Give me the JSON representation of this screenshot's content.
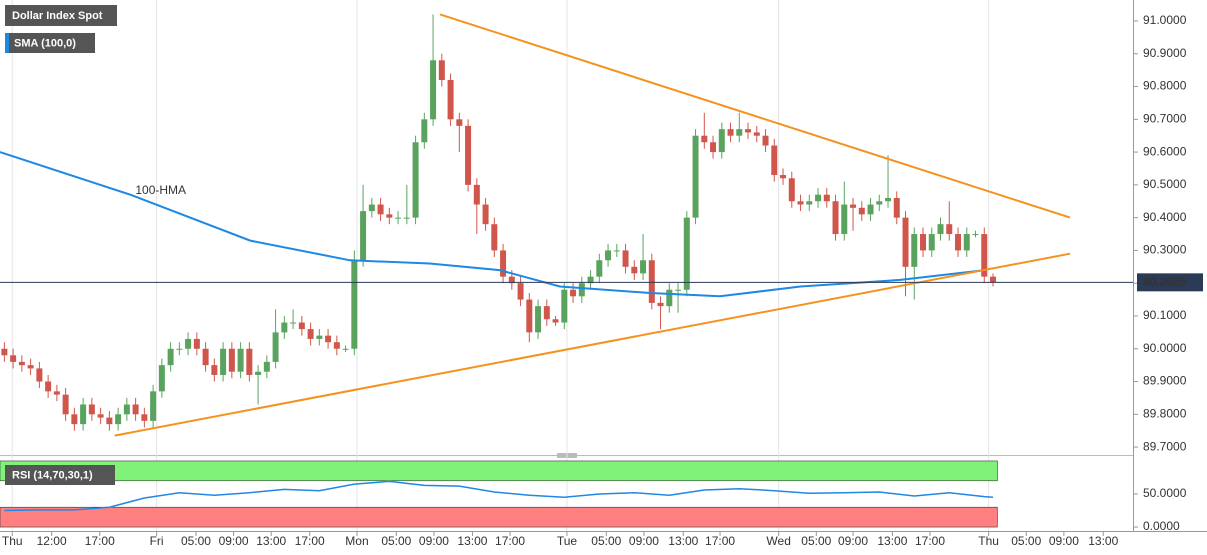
{
  "chart_data": [
    {
      "type": "candlestick",
      "title": "Dollar Index Spot",
      "indicator": "SMA (100,0)",
      "annotation": "100-HMA",
      "up_color": "#5aa35f",
      "down_color": "#d0564c",
      "open": [
        90.0,
        89.98,
        89.96,
        89.95,
        89.94,
        89.9,
        89.87,
        89.86,
        89.8,
        89.77,
        89.83,
        89.8,
        89.79,
        89.77,
        89.8,
        89.83,
        89.8,
        89.78,
        89.87,
        89.95,
        90.0,
        90.0,
        90.03,
        90.0,
        89.95,
        89.92,
        90.0,
        89.93,
        90.0,
        89.92,
        89.93,
        89.96,
        90.05,
        90.08,
        90.08,
        90.06,
        90.03,
        90.04,
        90.02,
        90.0,
        90.0,
        90.27,
        90.42,
        90.44,
        90.41,
        90.4,
        90.4,
        90.4,
        90.63,
        90.7,
        90.88,
        90.82,
        90.7,
        90.68,
        90.5,
        90.44,
        90.38,
        90.3,
        90.22,
        90.2,
        90.15,
        90.05,
        90.13,
        90.09,
        90.08,
        90.18,
        90.16,
        90.2,
        90.22,
        90.27,
        90.3,
        90.3,
        90.25,
        90.23,
        90.27,
        90.14,
        90.13,
        90.18,
        90.18,
        90.4,
        90.65,
        90.63,
        90.6,
        90.67,
        90.65,
        90.67,
        90.66,
        90.65,
        90.62,
        90.53,
        90.52,
        90.45,
        90.44,
        90.45,
        90.47,
        90.45,
        90.35,
        90.44,
        90.43,
        90.41,
        90.44,
        90.45,
        90.46,
        90.4,
        90.25,
        90.35,
        90.3,
        90.35,
        90.38,
        90.35,
        90.3,
        90.35,
        90.35,
        90.22
      ],
      "high": [
        90.02,
        90.0,
        89.98,
        89.97,
        89.96,
        89.92,
        89.89,
        89.88,
        89.82,
        89.85,
        89.85,
        89.82,
        89.81,
        89.82,
        89.85,
        89.85,
        89.82,
        89.89,
        89.97,
        90.02,
        90.02,
        90.05,
        90.05,
        90.02,
        89.97,
        90.02,
        90.02,
        90.02,
        90.02,
        89.95,
        89.98,
        90.12,
        90.1,
        90.12,
        90.1,
        90.08,
        90.06,
        90.06,
        90.04,
        90.01,
        90.3,
        90.5,
        90.46,
        90.46,
        90.43,
        90.42,
        90.5,
        90.65,
        90.72,
        91.02,
        90.9,
        90.84,
        90.72,
        90.7,
        90.52,
        90.46,
        90.4,
        90.32,
        90.24,
        90.22,
        90.17,
        90.15,
        90.15,
        90.1,
        90.2,
        90.2,
        90.22,
        90.24,
        90.29,
        90.32,
        90.32,
        90.32,
        90.27,
        90.35,
        90.29,
        90.16,
        90.2,
        90.2,
        90.42,
        90.67,
        90.72,
        90.65,
        90.69,
        90.69,
        90.72,
        90.69,
        90.68,
        90.67,
        90.64,
        90.55,
        90.54,
        90.47,
        90.47,
        90.49,
        90.49,
        90.47,
        90.51,
        90.46,
        90.45,
        90.46,
        90.47,
        90.59,
        90.48,
        90.42,
        90.37,
        90.37,
        90.37,
        90.4,
        90.45,
        90.37,
        90.37,
        90.36,
        90.37,
        90.23
      ],
      "low": [
        89.96,
        89.94,
        89.93,
        89.92,
        89.88,
        89.85,
        89.84,
        89.78,
        89.75,
        89.75,
        89.78,
        89.77,
        89.75,
        89.75,
        89.78,
        89.78,
        89.76,
        89.76,
        89.85,
        89.93,
        89.98,
        89.98,
        89.98,
        89.93,
        89.9,
        89.9,
        89.91,
        89.91,
        89.9,
        89.83,
        89.91,
        89.94,
        90.03,
        90.06,
        90.04,
        90.01,
        90.01,
        90.0,
        89.98,
        89.99,
        89.98,
        90.25,
        90.4,
        90.39,
        90.38,
        90.38,
        90.38,
        90.38,
        90.61,
        90.68,
        90.8,
        90.68,
        90.6,
        90.48,
        90.35,
        90.36,
        90.28,
        90.2,
        90.18,
        90.13,
        90.02,
        90.03,
        90.07,
        90.07,
        90.06,
        90.14,
        90.14,
        90.18,
        90.2,
        90.25,
        90.28,
        90.23,
        90.21,
        90.21,
        90.12,
        90.06,
        90.11,
        90.11,
        90.16,
        90.38,
        90.61,
        90.58,
        90.58,
        90.63,
        90.63,
        90.64,
        90.63,
        90.6,
        90.51,
        90.5,
        90.43,
        90.42,
        90.42,
        90.43,
        90.43,
        90.33,
        90.33,
        90.36,
        90.39,
        90.39,
        90.42,
        90.43,
        90.38,
        90.16,
        90.15,
        90.28,
        90.28,
        90.33,
        90.33,
        90.28,
        90.28,
        90.34,
        90.2,
        90.19
      ],
      "close": [
        89.98,
        89.96,
        89.95,
        89.94,
        89.9,
        89.87,
        89.86,
        89.8,
        89.77,
        89.83,
        89.8,
        89.79,
        89.77,
        89.8,
        89.83,
        89.8,
        89.78,
        89.87,
        89.95,
        90.0,
        90.0,
        90.03,
        90.0,
        89.95,
        89.92,
        90.0,
        89.93,
        90.0,
        89.92,
        89.93,
        89.96,
        90.05,
        90.08,
        90.08,
        90.06,
        90.03,
        90.04,
        90.02,
        90.0,
        90.0,
        90.27,
        90.42,
        90.44,
        90.41,
        90.4,
        90.4,
        90.4,
        90.63,
        90.7,
        90.88,
        90.82,
        90.7,
        90.68,
        90.5,
        90.44,
        90.38,
        90.3,
        90.22,
        90.2,
        90.15,
        90.05,
        90.13,
        90.09,
        90.08,
        90.18,
        90.16,
        90.2,
        90.22,
        90.27,
        90.3,
        90.3,
        90.25,
        90.23,
        90.27,
        90.14,
        90.13,
        90.18,
        90.18,
        90.4,
        90.65,
        90.63,
        90.6,
        90.67,
        90.65,
        90.67,
        90.66,
        90.65,
        90.62,
        90.53,
        90.52,
        90.45,
        90.44,
        90.45,
        90.47,
        90.45,
        90.35,
        90.44,
        90.43,
        90.41,
        90.44,
        90.45,
        90.46,
        90.4,
        90.25,
        90.35,
        90.3,
        90.35,
        90.38,
        90.35,
        90.3,
        90.35,
        90.35,
        90.22,
        90.2026
      ],
      "hma": {
        "color": "#1e88e5",
        "x": [
          -0.5,
          14.4,
          28.1,
          39.5,
          48.6,
          56.6,
          63.5,
          73.8,
          81.8,
          91,
          102.4,
          112.1
        ],
        "values": [
          90.6,
          90.47,
          90.33,
          90.27,
          90.26,
          90.24,
          90.19,
          90.17,
          90.16,
          90.19,
          90.21,
          90.24
        ]
      },
      "trendlines": [
        {
          "color": "#f5921e",
          "x": [
            49.8,
            121.8
          ],
          "values": [
            91.02,
            90.4
          ]
        },
        {
          "color": "#f5921e",
          "x": [
            12.6,
            121.8
          ],
          "values": [
            89.735,
            90.29
          ]
        }
      ],
      "last_price": 90.2026,
      "xlim": [
        -0.5,
        129
      ],
      "ylim": [
        89.685,
        91.064
      ],
      "yticks": [
        {
          "value": 91.0,
          "label": "91.0000"
        },
        {
          "value": 90.9,
          "label": "90.9000"
        },
        {
          "value": 90.8,
          "label": "90.8000"
        },
        {
          "value": 90.7,
          "label": "90.7000"
        },
        {
          "value": 90.6,
          "label": "90.6000"
        },
        {
          "value": 90.5,
          "label": "90.5000"
        },
        {
          "value": 90.4,
          "label": "90.4000"
        },
        {
          "value": 90.3,
          "label": "90.3000"
        },
        {
          "value": 90.2,
          "label": "90.2000"
        },
        {
          "value": 90.1,
          "label": "90.1000"
        },
        {
          "value": 90.0,
          "label": "90.0000"
        },
        {
          "value": 89.9,
          "label": "89.9000"
        },
        {
          "value": 89.8,
          "label": "89.8000"
        },
        {
          "value": 89.7,
          "label": "89.7000"
        }
      ],
      "xticks": [
        {
          "value": 0.9,
          "label": "Thu"
        },
        {
          "value": 5.4,
          "label": "12:00"
        },
        {
          "value": 10.9,
          "label": "17:00"
        },
        {
          "value": 17.4,
          "label": "Fri"
        },
        {
          "value": 21.9,
          "label": "05:00"
        },
        {
          "value": 26.2,
          "label": "09:00"
        },
        {
          "value": 30.5,
          "label": "13:00"
        },
        {
          "value": 34.9,
          "label": "17:00"
        },
        {
          "value": 40.3,
          "label": "Mon"
        },
        {
          "value": 44.8,
          "label": "05:00"
        },
        {
          "value": 49.1,
          "label": "09:00"
        },
        {
          "value": 53.5,
          "label": "13:00"
        },
        {
          "value": 57.8,
          "label": "17:00"
        },
        {
          "value": 64.3,
          "label": "Tue"
        },
        {
          "value": 68.8,
          "label": "05:00"
        },
        {
          "value": 73.1,
          "label": "09:00"
        },
        {
          "value": 77.6,
          "label": "13:00"
        },
        {
          "value": 81.8,
          "label": "17:00"
        },
        {
          "value": 88.5,
          "label": "Wed"
        },
        {
          "value": 92.8,
          "label": "05:00"
        },
        {
          "value": 97.0,
          "label": "09:00"
        },
        {
          "value": 101.5,
          "label": "13:00"
        },
        {
          "value": 105.8,
          "label": "17:00"
        },
        {
          "value": 112.5,
          "label": "Thu"
        },
        {
          "value": 116.8,
          "label": "05:00"
        },
        {
          "value": 121.1,
          "label": "09:00"
        },
        {
          "value": 125.6,
          "label": "13:00"
        }
      ]
    },
    {
      "type": "line",
      "title": "RSI (14,70,30,1)",
      "color": "#1e88e5",
      "x": [
        0,
        4,
        8,
        12,
        16,
        20,
        24,
        28,
        32,
        36,
        40,
        44,
        48,
        52,
        56,
        60,
        64,
        68,
        72,
        76,
        80,
        84,
        88,
        92,
        96,
        100,
        104,
        108,
        112,
        113
      ],
      "values": [
        25,
        26,
        26,
        30,
        44,
        52,
        48,
        52,
        57,
        55,
        65,
        69,
        63,
        62,
        53,
        48,
        45,
        50,
        52,
        48,
        56,
        58,
        55,
        51,
        52,
        53,
        47,
        52,
        46,
        45
      ],
      "bands": [
        {
          "range": [
            70,
            100
          ],
          "color": "#80f27a"
        },
        {
          "range": [
            0,
            30
          ],
          "color": "#ff8080"
        }
      ],
      "band_end": 113.5,
      "xlim": [
        -0.5,
        129
      ],
      "ylim": [
        -6,
        106
      ],
      "yticks": [
        {
          "value": 0,
          "label": "0.0000"
        },
        {
          "value": 50,
          "label": "50.0000"
        }
      ]
    }
  ]
}
